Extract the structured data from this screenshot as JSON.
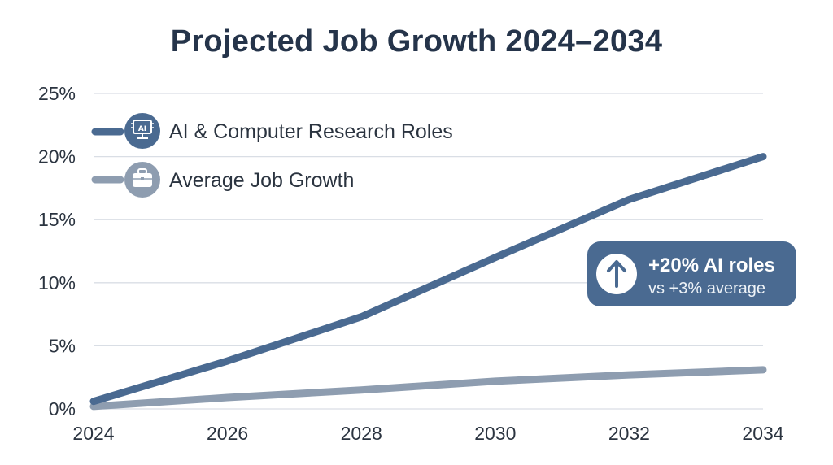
{
  "title": "Projected Job Growth 2024–2034",
  "colors": {
    "ai_series": "#4a6a91",
    "avg_series": "#8e9db0",
    "grid": "#d9dee5",
    "callout_bg": "#4a6a91",
    "text": "#25344a"
  },
  "legend": {
    "placement": "top-left",
    "items": [
      {
        "label": "AI & Computer Research Roles",
        "icon": "ai-chip-monitor-icon",
        "color": "#4a6a91"
      },
      {
        "label": "Average Job Growth",
        "icon": "briefcase-icon",
        "color": "#8e9db0"
      }
    ]
  },
  "callout": {
    "icon": "arrow-up-icon",
    "title": "+20% AI roles",
    "subtitle": "vs +3% average",
    "placement": "right"
  },
  "chart_data": {
    "type": "line",
    "title": "Projected Job Growth 2024–2034",
    "xlabel": "",
    "ylabel": "",
    "x": [
      2024,
      2026,
      2028,
      2030,
      2032,
      2034
    ],
    "x_ticks": [
      "2024",
      "2026",
      "2028",
      "2030",
      "2032",
      "2034"
    ],
    "y_ticks": [
      "0%",
      "5%",
      "10%",
      "15%",
      "20%",
      "25%"
    ],
    "ylim": [
      0,
      25
    ],
    "xlim": [
      2024,
      2034
    ],
    "grid": true,
    "series": [
      {
        "name": "AI & Computer Research Roles",
        "values": [
          0.6,
          3.8,
          7.3,
          12.0,
          16.6,
          20.0
        ]
      },
      {
        "name": "Average Job Growth",
        "values": [
          0.2,
          0.9,
          1.5,
          2.2,
          2.7,
          3.1
        ]
      }
    ]
  }
}
